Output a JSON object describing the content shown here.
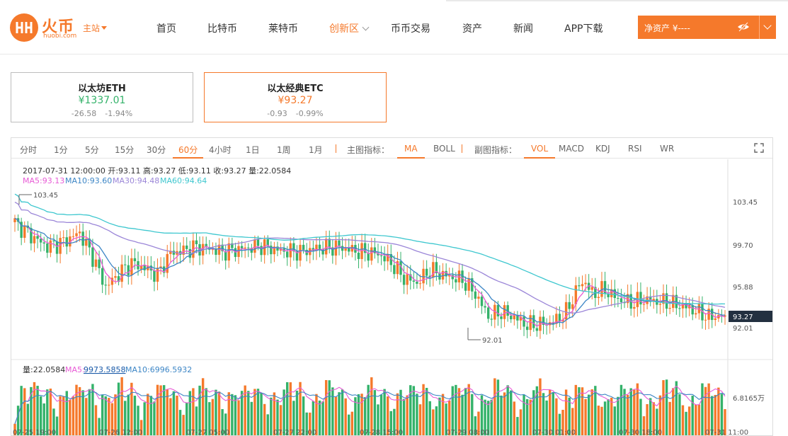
{
  "header": {
    "brand": "火币",
    "domain": "huobi.com",
    "site_switch": "主站",
    "nav": [
      {
        "label": "首页"
      },
      {
        "label": "比特币"
      },
      {
        "label": "莱特币"
      },
      {
        "label": "创新区"
      },
      {
        "label": "币币交易"
      },
      {
        "label": "资产"
      },
      {
        "label": "新闻"
      },
      {
        "label": "APP下载"
      }
    ],
    "assets_label": "净资产 ¥----"
  },
  "tickers": [
    {
      "name": "以太坊ETH",
      "price": "¥1337.01",
      "change": "-26.58",
      "change_pct": "-1.94%",
      "price_color": "#34b26a",
      "selected": false
    },
    {
      "name": "以太经典ETC",
      "price": "¥93.27",
      "change": "-0.93",
      "change_pct": "-0.99%",
      "price_color": "#f5792b",
      "selected": true
    }
  ],
  "toolbar": {
    "periods": [
      "分时",
      "1分",
      "5分",
      "15分",
      "30分",
      "60分",
      "4小时",
      "1日",
      "1周",
      "1月"
    ],
    "active_period": "60分",
    "main_label": "主图指标：",
    "main_indicators": [
      "MA",
      "BOLL"
    ],
    "active_main": "MA",
    "sub_label": "副图指标：",
    "sub_indicators": [
      "VOL",
      "MACD",
      "KDJ",
      "RSI",
      "WR"
    ],
    "active_sub": "VOL"
  },
  "chart": {
    "ohlc_line": "2017-07-31 12:00:00  开:93.11  高:93.27  低:93.11  收:93.27  量:22.0584",
    "ma_labels": [
      {
        "text": "MA5:93.13",
        "color": "#e85bd6"
      },
      {
        "text": "MA10:93.60",
        "color": "#3d86c6"
      },
      {
        "text": "MA30:94.48",
        "color": "#9b86d8"
      },
      {
        "text": "MA60:94.64",
        "color": "#3ec7cf"
      }
    ],
    "vol_prefix": "量:22.0584",
    "vol_ma5_label": "MA5:",
    "vol_ma5_value": "9973.5858",
    "vol_ma10": "MA10:6996.5932",
    "high_marker": "103.45",
    "low_marker": "92.01",
    "current_price": "93.27",
    "y_ticks": [
      "103.45",
      "99.70",
      "95.88",
      "92.01"
    ],
    "vol_tick": "6.8165万",
    "x_ticks": [
      "07-25 19:00",
      "07-26 12:00",
      "07-27 05:00",
      "07-27 22:00",
      "07-28 15:00",
      "07-29 08:00",
      "07-30 01:00",
      "07-30 18:00",
      "07-31 11:00"
    ],
    "colors": {
      "up": "#f5792b",
      "down": "#34b26a",
      "ma5": "#e85bd6",
      "ma10": "#3d86c6",
      "ma30": "#9b86d8",
      "ma60": "#3ec7cf"
    }
  },
  "chart_data": {
    "type": "candlestick",
    "interval": "60m",
    "y_range": [
      90.5,
      106
    ],
    "volume_max": "6.8165万",
    "x_start": "07-25 17:00",
    "x_end": "07-31 12:00",
    "close_series_keypoints": [
      [
        0,
        102.5
      ],
      [
        5,
        101.2
      ],
      [
        10,
        100.1
      ],
      [
        15,
        100.6
      ],
      [
        20,
        101.5
      ],
      [
        24,
        99.1
      ],
      [
        28,
        96.1
      ],
      [
        32,
        97.4
      ],
      [
        36,
        98.5
      ],
      [
        40,
        98.0
      ],
      [
        44,
        97.3
      ],
      [
        48,
        99.5
      ],
      [
        52,
        99.7
      ],
      [
        56,
        100.1
      ],
      [
        60,
        99.9
      ],
      [
        64,
        99.6
      ],
      [
        70,
        99.9
      ],
      [
        76,
        100.2
      ],
      [
        82,
        99.7
      ],
      [
        88,
        99.6
      ],
      [
        94,
        100.0
      ],
      [
        100,
        100.1
      ],
      [
        106,
        99.6
      ],
      [
        112,
        99.4
      ],
      [
        116,
        98.5
      ],
      [
        120,
        97.0
      ],
      [
        124,
        96.5
      ],
      [
        128,
        97.8
      ],
      [
        132,
        97.3
      ],
      [
        138,
        96.8
      ],
      [
        142,
        95.4
      ],
      [
        146,
        93.2
      ],
      [
        150,
        93.6
      ],
      [
        154,
        93.1
      ],
      [
        158,
        92.3
      ],
      [
        162,
        92.4
      ],
      [
        166,
        92.6
      ],
      [
        170,
        93.6
      ],
      [
        174,
        96.3
      ],
      [
        176,
        96.6
      ],
      [
        178,
        95.4
      ],
      [
        182,
        95.8
      ],
      [
        186,
        94.9
      ],
      [
        190,
        94.5
      ],
      [
        194,
        94.8
      ],
      [
        200,
        94.6
      ],
      [
        206,
        94.2
      ],
      [
        210,
        93.7
      ],
      [
        214,
        93.1
      ],
      [
        219,
        93.27
      ]
    ]
  }
}
